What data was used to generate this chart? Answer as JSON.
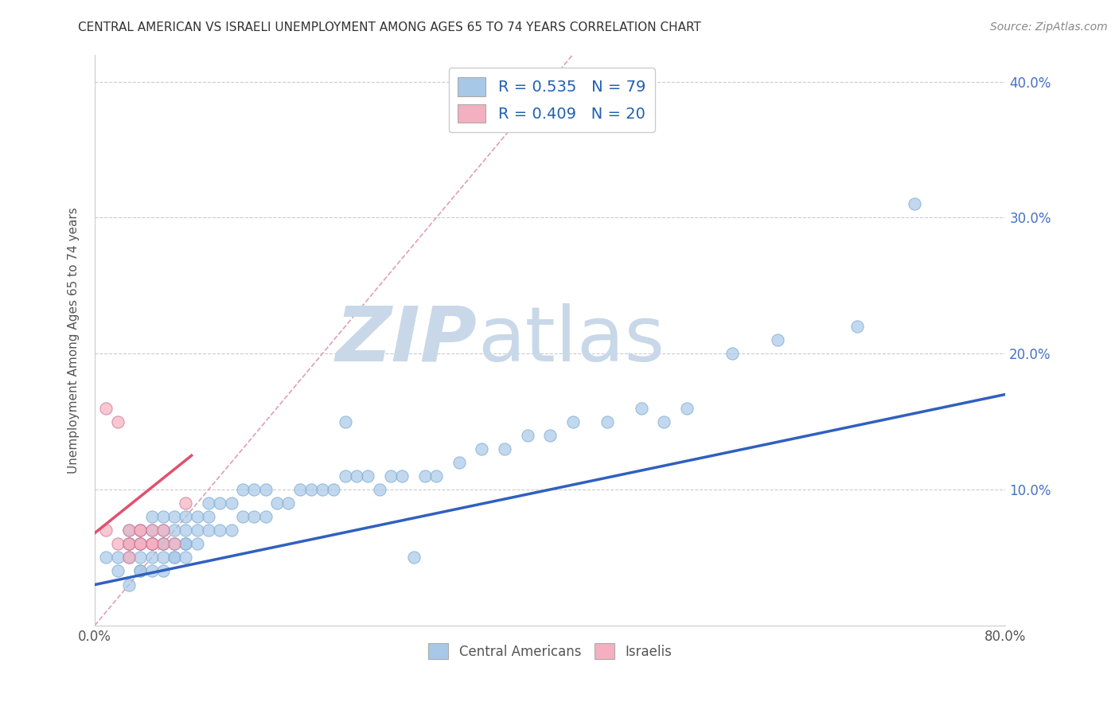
{
  "title": "CENTRAL AMERICAN VS ISRAELI UNEMPLOYMENT AMONG AGES 65 TO 74 YEARS CORRELATION CHART",
  "source": "Source: ZipAtlas.com",
  "ylabel": "Unemployment Among Ages 65 to 74 years",
  "xlabel": "",
  "xlim": [
    0.0,
    0.8
  ],
  "ylim": [
    0.0,
    0.42
  ],
  "xticks": [
    0.0,
    0.1,
    0.2,
    0.3,
    0.4,
    0.5,
    0.6,
    0.7,
    0.8
  ],
  "yticks": [
    0.0,
    0.1,
    0.2,
    0.3,
    0.4
  ],
  "ytick_labels_right": [
    "",
    "10.0%",
    "20.0%",
    "30.0%",
    "40.0%"
  ],
  "xtick_labels": [
    "0.0%",
    "",
    "",
    "",
    "",
    "",
    "",
    "",
    "80.0%"
  ],
  "blue_scatter_x": [
    0.01,
    0.02,
    0.02,
    0.03,
    0.03,
    0.03,
    0.03,
    0.04,
    0.04,
    0.04,
    0.04,
    0.04,
    0.05,
    0.05,
    0.05,
    0.05,
    0.05,
    0.06,
    0.06,
    0.06,
    0.06,
    0.06,
    0.06,
    0.07,
    0.07,
    0.07,
    0.07,
    0.07,
    0.08,
    0.08,
    0.08,
    0.08,
    0.08,
    0.09,
    0.09,
    0.09,
    0.1,
    0.1,
    0.1,
    0.11,
    0.11,
    0.12,
    0.12,
    0.13,
    0.13,
    0.14,
    0.14,
    0.15,
    0.15,
    0.16,
    0.17,
    0.18,
    0.19,
    0.2,
    0.21,
    0.22,
    0.22,
    0.23,
    0.24,
    0.25,
    0.26,
    0.27,
    0.28,
    0.29,
    0.3,
    0.32,
    0.34,
    0.36,
    0.38,
    0.4,
    0.42,
    0.45,
    0.48,
    0.5,
    0.52,
    0.56,
    0.6,
    0.67,
    0.72
  ],
  "blue_scatter_y": [
    0.05,
    0.05,
    0.04,
    0.05,
    0.06,
    0.07,
    0.03,
    0.04,
    0.05,
    0.06,
    0.07,
    0.04,
    0.04,
    0.05,
    0.06,
    0.07,
    0.08,
    0.05,
    0.06,
    0.07,
    0.08,
    0.04,
    0.06,
    0.05,
    0.06,
    0.07,
    0.08,
    0.05,
    0.05,
    0.06,
    0.07,
    0.08,
    0.06,
    0.06,
    0.07,
    0.08,
    0.07,
    0.08,
    0.09,
    0.07,
    0.09,
    0.07,
    0.09,
    0.08,
    0.1,
    0.08,
    0.1,
    0.08,
    0.1,
    0.09,
    0.09,
    0.1,
    0.1,
    0.1,
    0.1,
    0.11,
    0.15,
    0.11,
    0.11,
    0.1,
    0.11,
    0.11,
    0.05,
    0.11,
    0.11,
    0.12,
    0.13,
    0.13,
    0.14,
    0.14,
    0.15,
    0.15,
    0.16,
    0.15,
    0.16,
    0.2,
    0.21,
    0.22,
    0.31
  ],
  "pink_scatter_x": [
    0.01,
    0.02,
    0.02,
    0.03,
    0.03,
    0.03,
    0.04,
    0.04,
    0.04,
    0.04,
    0.05,
    0.05,
    0.05,
    0.05,
    0.06,
    0.06,
    0.07,
    0.08,
    0.01,
    0.03
  ],
  "pink_scatter_y": [
    0.16,
    0.15,
    0.06,
    0.06,
    0.07,
    0.06,
    0.06,
    0.06,
    0.07,
    0.07,
    0.06,
    0.07,
    0.06,
    0.06,
    0.06,
    0.07,
    0.06,
    0.09,
    0.07,
    0.05
  ],
  "blue_line_x": [
    0.0,
    0.8
  ],
  "blue_line_y": [
    0.03,
    0.17
  ],
  "pink_line_x": [
    0.0,
    0.085
  ],
  "pink_line_y": [
    0.068,
    0.125
  ],
  "diag_line_x": [
    0.0,
    0.42
  ],
  "diag_line_y": [
    0.0,
    0.42
  ],
  "watermark": "ZIPAtlas",
  "watermark_color": "#c8d8e8",
  "bg_color": "#ffffff",
  "blue_color": "#a8c8e8",
  "pink_color": "#f4b0c0",
  "blue_line_color": "#3060c0",
  "pink_line_color": "#e05070",
  "diag_color": "#e0a0b0"
}
